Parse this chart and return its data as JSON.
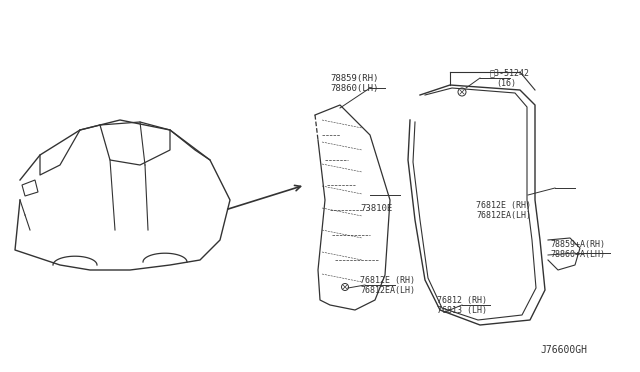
{
  "bg_color": "#ffffff",
  "line_color": "#333333",
  "text_color": "#333333",
  "fig_width": 6.4,
  "fig_height": 3.72,
  "diagram_code": "J76600GH",
  "labels": {
    "top_left_part1": "78859(RH)",
    "top_left_part2": "78860(LH)",
    "top_right_part1": "ࡔ3-51242",
    "top_right_part2": "(16)",
    "center_label": "73810E",
    "mid_right_part1": "76812E (RH)",
    "mid_right_part2": "76812EA(LH)",
    "bottom_left_part1": "76812E (RH)",
    "bottom_left_part2": "76812EA(LH)",
    "bottom_mid_part1": "76812 (RH)",
    "bottom_mid_part2": "76813 (LH)",
    "far_right_part1": "78859+A(RH)",
    "far_right_part2": "78860+A(LH)"
  }
}
